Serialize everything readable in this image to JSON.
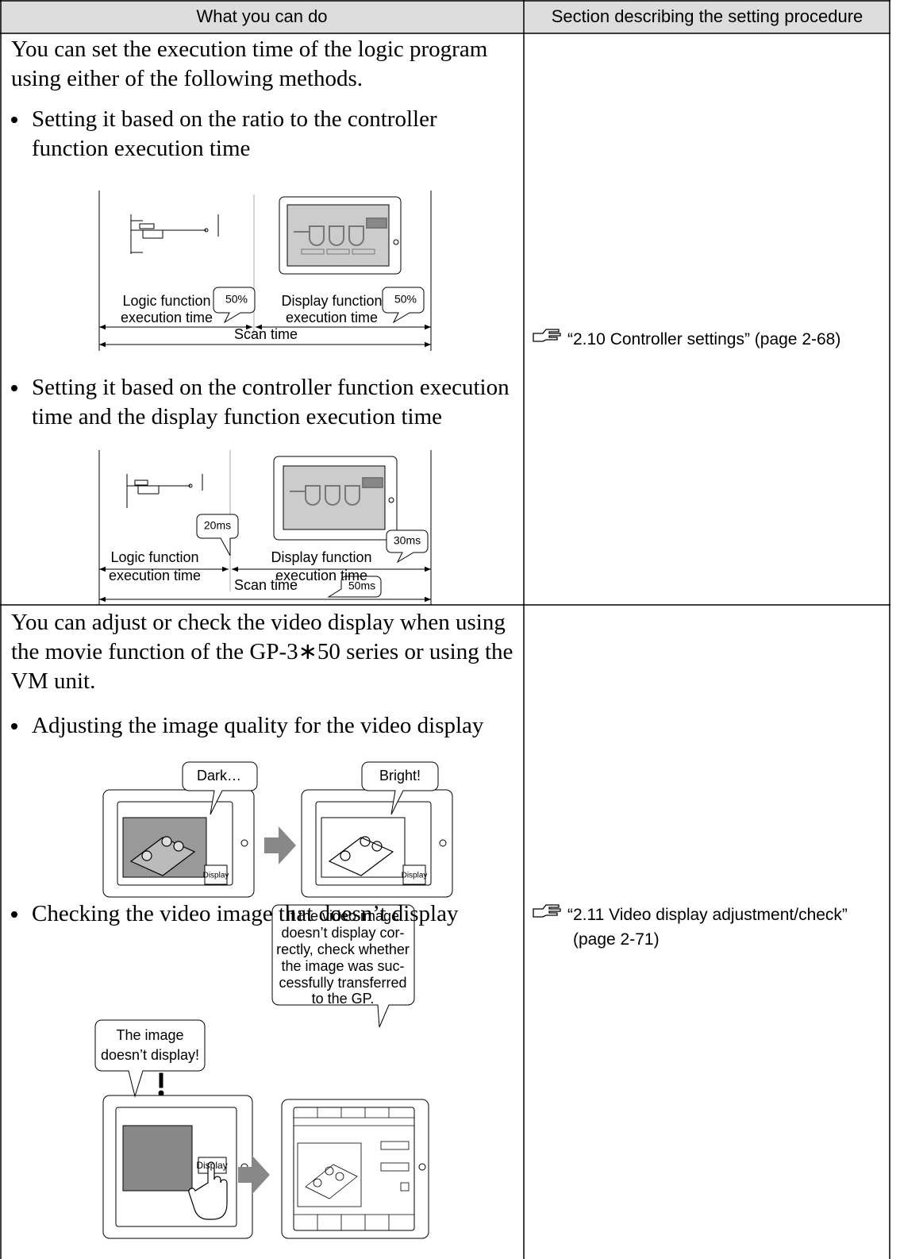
{
  "table": {
    "headers": [
      "What you can do",
      "Section describing the setting procedure"
    ],
    "rows": [
      {
        "description": "You can set the execution time of the logic program using either of the following methods.",
        "items": [
          {
            "text": "Setting it based on the ratio to the controller function execution time",
            "figure": {
              "logic_label": [
                "Logic function",
                "execution time"
              ],
              "display_label": [
                "Display function",
                "execution time"
              ],
              "scan_label": "Scan time",
              "callouts": [
                "50%",
                "50%"
              ]
            }
          },
          {
            "text": "Setting it based on the controller function execution time and the display function execution time",
            "figure": {
              "logic_label": [
                "Logic function",
                "execution time"
              ],
              "display_label": [
                "Display function",
                "execution time"
              ],
              "scan_label": "Scan time",
              "callouts": [
                "20ms",
                "30ms",
                "50ms"
              ]
            }
          }
        ],
        "reference": [
          "“2.10 Controller settings” (page 2-68)"
        ]
      },
      {
        "description": "You can adjust or check the video display when using the movie function of the GP-3∗50 series or using the VM unit.",
        "items": [
          {
            "text": "Adjusting the image quality for the video display",
            "figure": {
              "callouts": [
                "Dark…",
                "Bright!"
              ],
              "button": "Display"
            }
          },
          {
            "text": "Checking the video image that doesn’t display",
            "figure": {
              "callouts": [
                [
                  "The image",
                  "doesn’t display!"
                ],
                [
                  "If the video image",
                  "doesn’t display cor-",
                  "rectly, check whether",
                  "the image was suc-",
                  "cessfully transferred",
                  "to the GP."
                ]
              ],
              "button": "Display"
            }
          }
        ],
        "reference": [
          "“2.11 Video display adjustment/check”",
          "(page 2-71)"
        ]
      }
    ]
  }
}
